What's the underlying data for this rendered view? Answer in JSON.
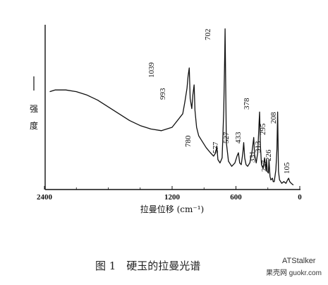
{
  "chart_data": {
    "type": "line",
    "title": "",
    "xlabel": "拉曼位移 (cm⁻¹)",
    "ylabel": "强度",
    "xlim": [
      2400,
      0
    ],
    "x_ticks": [
      2400,
      1200,
      600,
      0
    ],
    "grid": false,
    "series": [
      {
        "x": [
          2350,
          2300,
          2200,
          2100,
          2000,
          1900,
          1800,
          1700,
          1600,
          1500,
          1400,
          1300,
          1200,
          1100,
          1080,
          1060,
          1050,
          1039,
          1030,
          1015,
          1005,
          993,
          985,
          970,
          950,
          920,
          880,
          840,
          810,
          790,
          780,
          770,
          750,
          730,
          715,
          705,
          702,
          698,
          690,
          670,
          640,
          610,
          590,
          577,
          565,
          550,
          535,
          527,
          518,
          505,
          490,
          470,
          450,
          440,
          433,
          425,
          410,
          395,
          385,
          378,
          370,
          360,
          345,
          331,
          325,
          318,
          313,
          305,
          295,
          290,
          280,
          272,
          257,
          250,
          240,
          225,
          215,
          208,
          200,
          190,
          180,
          170,
          150,
          130,
          115,
          105,
          95,
          80,
          60
        ],
        "y": [
          56,
          57,
          57,
          56,
          54,
          51,
          47,
          43,
          39,
          36,
          34,
          33,
          35,
          43,
          50,
          58,
          65,
          70,
          52,
          46,
          54,
          60,
          45,
          35,
          30,
          27,
          23,
          20,
          18,
          20,
          24,
          16,
          14,
          17,
          45,
          80,
          93,
          70,
          26,
          15,
          12,
          14,
          18,
          20,
          14,
          13,
          20,
          26,
          17,
          13,
          12,
          14,
          20,
          25,
          29,
          19,
          14,
          20,
          34,
          44,
          24,
          13,
          11,
          17,
          13,
          10,
          16,
          9,
          8,
          16,
          6,
          4,
          5,
          3,
          3,
          10,
          22,
          44,
          9,
          4,
          3,
          2,
          3,
          2,
          4,
          5,
          3,
          2,
          1
        ]
      }
    ],
    "ylim": [
      0,
      100
    ],
    "peak_labels": [
      "1039",
      "993",
      "780",
      "702",
      "577",
      "527",
      "433",
      "378",
      "331",
      "313",
      "295",
      "257",
      "226",
      "208",
      "105"
    ]
  },
  "caption": "图 1　硬玉的拉曼光谱",
  "watermark": {
    "line1": "ATStalker",
    "line2": "果壳网 guokr.com"
  },
  "colors": {
    "line": "#111111",
    "background": "#ffffff"
  }
}
